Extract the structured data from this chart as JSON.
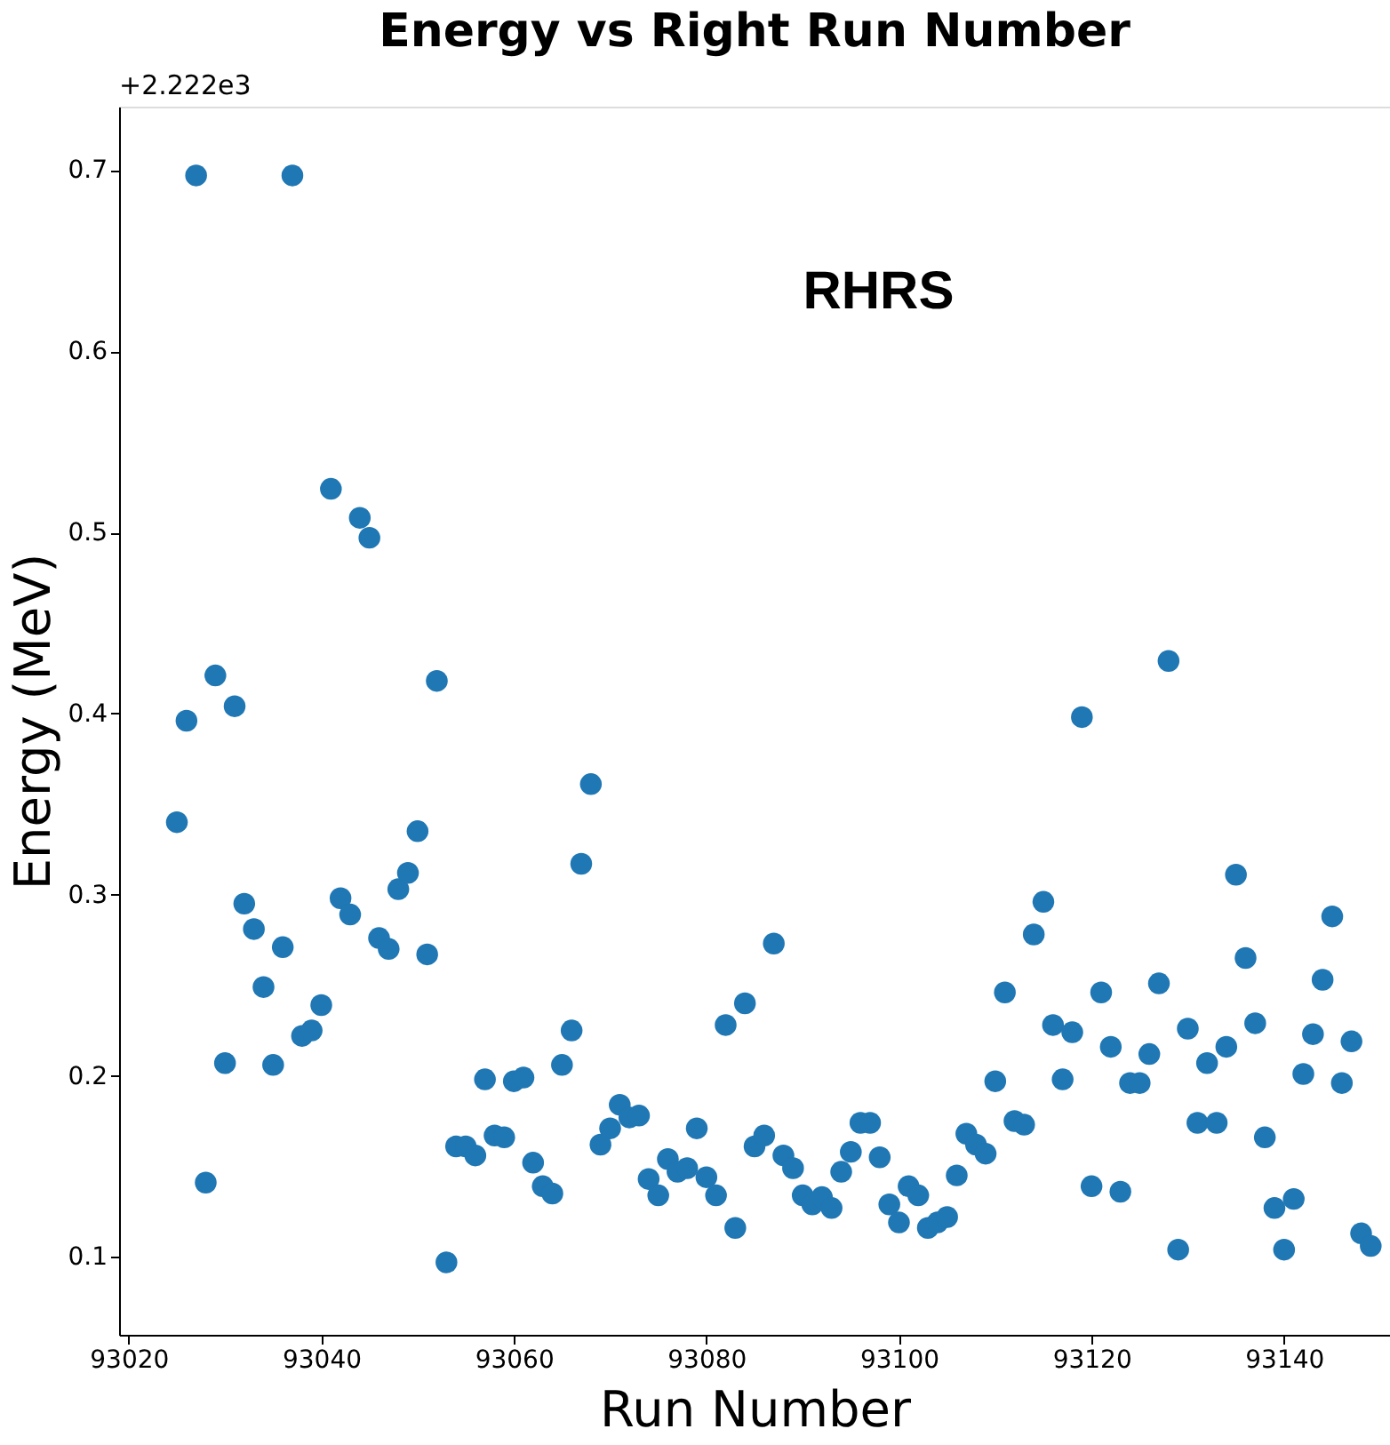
{
  "chart_data": {
    "type": "scatter",
    "title": "Energy vs Right Run Number",
    "xlabel": "Run Number",
    "ylabel": "Energy (MeV)",
    "annotations": [
      "RHRS",
      "+2.222e3"
    ],
    "x": [
      93025,
      93026,
      93027,
      93028,
      93029,
      93030,
      93031,
      93032,
      93033,
      93034,
      93035,
      93036,
      93037,
      93038,
      93039,
      93040,
      93041,
      93042,
      93043,
      93044,
      93045,
      93046,
      93047,
      93048,
      93049,
      93050,
      93051,
      93052,
      93053,
      93054,
      93055,
      93056,
      93057,
      93058,
      93059,
      93060,
      93061,
      93062,
      93063,
      93064,
      93065,
      93066,
      93067,
      93068,
      93069,
      93070,
      93071,
      93072,
      93073,
      93074,
      93075,
      93076,
      93077,
      93078,
      93079,
      93080,
      93081,
      93082,
      93083,
      93084,
      93085,
      93086,
      93087,
      93088,
      93089,
      93090,
      93091,
      93092,
      93093,
      93094,
      93095,
      93096,
      93097,
      93098,
      93099,
      93100,
      93101,
      93102,
      93103,
      93104,
      93105,
      93106,
      93107,
      93108,
      93109,
      93110,
      93111,
      93112,
      93113,
      93114,
      93115,
      93116,
      93117,
      93118,
      93119,
      93120,
      93121,
      93122,
      93123,
      93124,
      93125,
      93126,
      93127,
      93128,
      93129,
      93130,
      93131,
      93132,
      93133,
      93134,
      93135,
      93136,
      93137,
      93138,
      93139,
      93140,
      93141,
      93142,
      93143,
      93144,
      93145,
      93146,
      93147,
      93148,
      93149
    ],
    "series": [
      {
        "color": "#1f77b4",
        "values": [
          0.34,
          0.396,
          0.697,
          0.141,
          0.421,
          0.207,
          0.404,
          0.295,
          0.281,
          0.249,
          0.206,
          0.271,
          0.697,
          0.222,
          0.225,
          0.239,
          0.524,
          0.298,
          0.289,
          0.508,
          0.497,
          0.276,
          0.27,
          0.303,
          0.312,
          0.335,
          0.267,
          0.418,
          0.097,
          0.161,
          0.161,
          0.156,
          0.198,
          0.167,
          0.166,
          0.197,
          0.199,
          0.152,
          0.139,
          0.135,
          0.206,
          0.225,
          0.317,
          0.361,
          0.162,
          0.171,
          0.184,
          0.177,
          0.178,
          0.143,
          0.134,
          0.154,
          0.147,
          0.149,
          0.171,
          0.144,
          0.134,
          0.228,
          0.116,
          0.24,
          0.161,
          0.167,
          0.273,
          0.156,
          0.149,
          0.134,
          0.129,
          0.133,
          0.127,
          0.147,
          0.158,
          0.174,
          0.174,
          0.155,
          0.129,
          0.119,
          0.139,
          0.134,
          0.116,
          0.119,
          0.122,
          0.145,
          0.168,
          0.162,
          0.157,
          0.197,
          0.246,
          0.175,
          0.173,
          0.278,
          0.296,
          0.228,
          0.198,
          0.224,
          0.398,
          0.139,
          0.246,
          0.216,
          0.136,
          0.196,
          0.196,
          0.212,
          0.251,
          0.429,
          0.104,
          0.226,
          0.174,
          0.207,
          0.174,
          0.216,
          0.311,
          0.265,
          0.229,
          0.166,
          0.127,
          0.104,
          0.132,
          0.201,
          0.223,
          0.253,
          0.288,
          0.196,
          0.219,
          0.113,
          0.106
        ]
      }
    ],
    "xlim": [
      93019,
      93151
    ],
    "ylim": [
      0.057,
      0.735
    ],
    "xticks": [
      93020,
      93040,
      93060,
      93080,
      93100,
      93120,
      93140
    ],
    "yticks": [
      0.1,
      0.2,
      0.3,
      0.4,
      0.5,
      0.6,
      0.7
    ],
    "grid": false,
    "marker": "circle"
  }
}
